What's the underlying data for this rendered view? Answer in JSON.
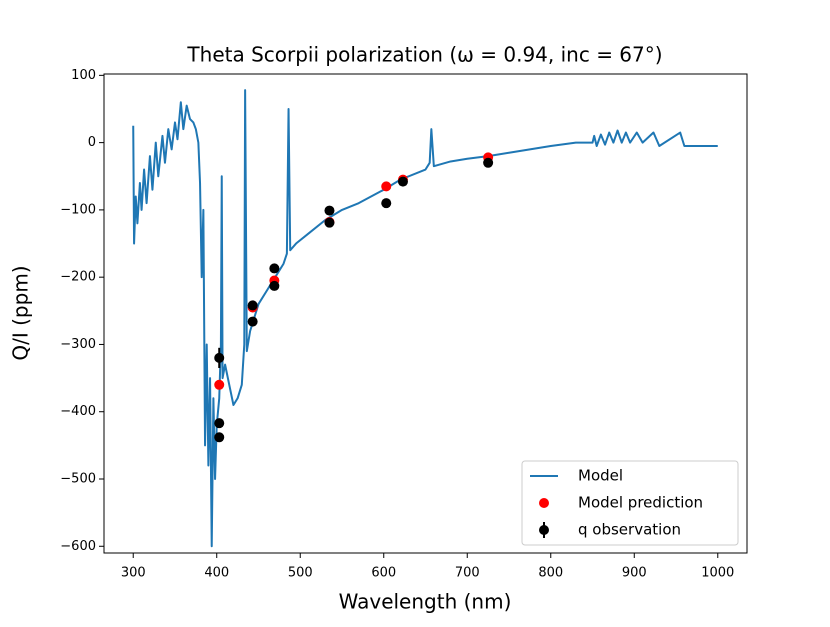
{
  "chart_data": {
    "type": "line",
    "title": "Theta Scorpii polarization (ω = 0.94, inc = 67°)",
    "xlabel": "Wavelength (nm)",
    "ylabel": "Q/I (ppm)",
    "xlim": [
      265,
      1035
    ],
    "ylim": [
      -610,
      102
    ],
    "xticks": [
      300,
      400,
      500,
      600,
      700,
      800,
      900,
      1000
    ],
    "yticks": [
      {
        "value": -600,
        "label": "−600"
      },
      {
        "value": -500,
        "label": "−500"
      },
      {
        "value": -400,
        "label": "−400"
      },
      {
        "value": -300,
        "label": "−300"
      },
      {
        "value": -200,
        "label": "−200"
      },
      {
        "value": -100,
        "label": "−100"
      },
      0,
      100
    ],
    "legend": "lower right",
    "series": [
      {
        "name": "Model",
        "type": "line",
        "color": "#1f77b4",
        "x": [
          300,
          301,
          303,
          305,
          308,
          310,
          313,
          316,
          320,
          323,
          327,
          330,
          335,
          338,
          342,
          346,
          350,
          353,
          357,
          360,
          364,
          368,
          372,
          375,
          378,
          380,
          382,
          384,
          386,
          388,
          390,
          392,
          394,
          396,
          398,
          400,
          403,
          405,
          406,
          407,
          410,
          415,
          420,
          425,
          430,
          433,
          434,
          436,
          440,
          445,
          450,
          460,
          470,
          480,
          484,
          486,
          488,
          495,
          510,
          530,
          550,
          570,
          600,
          620,
          650,
          655,
          657,
          660,
          680,
          700,
          725,
          750,
          800,
          830,
          850,
          852,
          855,
          860,
          865,
          870,
          875,
          880,
          885,
          890,
          895,
          903,
          910,
          923,
          930,
          955,
          960,
          1000
        ],
        "values": [
          25,
          -150,
          -80,
          -120,
          -60,
          -100,
          -40,
          -90,
          -20,
          -70,
          0,
          -50,
          10,
          -30,
          20,
          -10,
          30,
          5,
          60,
          20,
          55,
          35,
          30,
          20,
          0,
          -60,
          -200,
          -100,
          -450,
          -300,
          -480,
          -350,
          -600,
          -380,
          -500,
          -420,
          -380,
          -300,
          -50,
          -350,
          -330,
          -360,
          -390,
          -380,
          -360,
          -300,
          78,
          -310,
          -280,
          -260,
          -240,
          -220,
          -200,
          -180,
          -165,
          50,
          -160,
          -150,
          -135,
          -115,
          -100,
          -90,
          -70,
          -55,
          -40,
          -30,
          20,
          -35,
          -28,
          -24,
          -20,
          -15,
          -5,
          0,
          0,
          10,
          -5,
          12,
          -3,
          15,
          0,
          18,
          0,
          15,
          0,
          15,
          0,
          15,
          -5,
          15,
          -5,
          -5
        ]
      },
      {
        "name": "Model prediction",
        "type": "scatter",
        "color": "#ff0000",
        "x": [
          403,
          443,
          469,
          535,
          603,
          623,
          725
        ],
        "values": [
          -360,
          -245,
          -205,
          -118,
          -65,
          -55,
          -22
        ]
      },
      {
        "name": "q observation",
        "type": "errorbar",
        "color": "#000000",
        "x": [
          403,
          403,
          403,
          443,
          443,
          469,
          469,
          535,
          535,
          603,
          623,
          725
        ],
        "values": [
          -320,
          -417,
          -438,
          -242,
          -266,
          -187,
          -213,
          -101,
          -119,
          -90,
          -58,
          -30
        ],
        "errors": [
          15,
          6,
          6,
          5,
          5,
          5,
          5,
          5,
          5,
          5,
          5,
          5
        ]
      }
    ]
  }
}
